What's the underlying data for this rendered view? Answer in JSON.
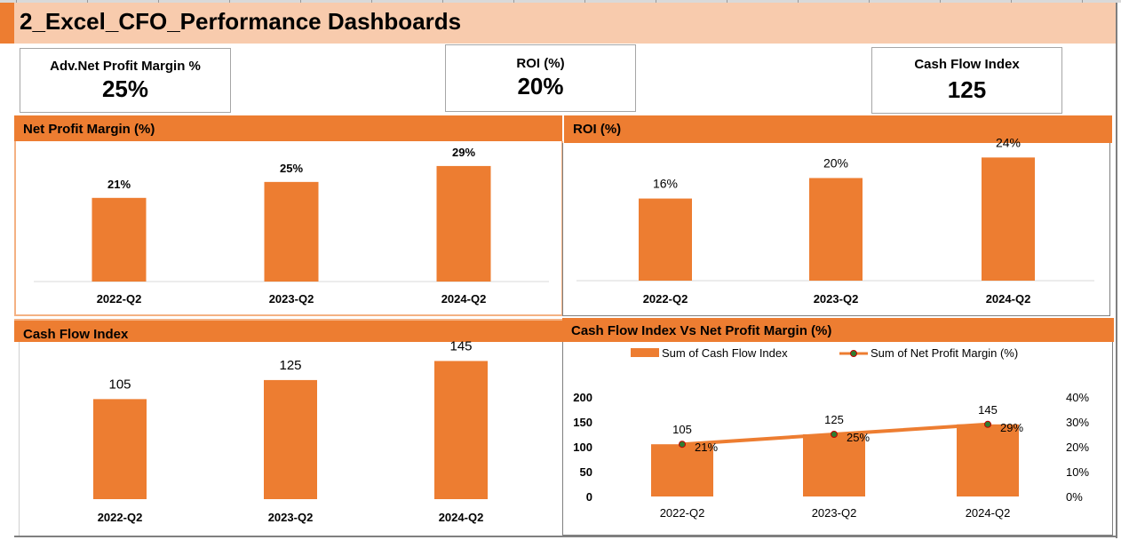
{
  "title": "2_Excel_CFO_Performance Dashboards",
  "colors": {
    "accent": "#ed7d31",
    "header_bg": "#f8cbad",
    "line_series": "#ed7d31",
    "marker": "#2e7d32"
  },
  "kpis": {
    "npm": {
      "label": "Adv.Net Profit Margin %",
      "value": "25%"
    },
    "roi": {
      "label": "ROI (%)",
      "value": "20%"
    },
    "cfi": {
      "label": "Cash Flow Index",
      "value": "125"
    }
  },
  "panels": {
    "npm_title": "Net Profit Margin (%)",
    "roi_title": "ROI (%)",
    "cfi_title": "Cash Flow Index",
    "combo_title": "Cash Flow Index Vs Net Profit Margin (%)"
  },
  "chart_data": [
    {
      "type": "bar",
      "title": "Net Profit Margin (%)",
      "categories": [
        "2022-Q2",
        "2023-Q2",
        "2024-Q2"
      ],
      "values": [
        21,
        25,
        29
      ],
      "data_labels": [
        "21%",
        "25%",
        "29%"
      ],
      "ylim": [
        0,
        35
      ]
    },
    {
      "type": "bar",
      "title": "ROI (%)",
      "categories": [
        "2022-Q2",
        "2023-Q2",
        "2024-Q2"
      ],
      "values": [
        16,
        20,
        24
      ],
      "data_labels": [
        "16%",
        "20%",
        "24%"
      ],
      "ylim": [
        0,
        27
      ]
    },
    {
      "type": "bar",
      "title": "Cash Flow Index",
      "categories": [
        "2022-Q2",
        "2023-Q2",
        "2024-Q2"
      ],
      "values": [
        105,
        125,
        145
      ],
      "data_labels": [
        "105",
        "125",
        "145"
      ],
      "ylim": [
        0,
        165
      ]
    },
    {
      "type": "bar+line",
      "title": "Cash Flow Index Vs Net Profit Margin (%)",
      "categories": [
        "2022-Q2",
        "2023-Q2",
        "2024-Q2"
      ],
      "series": [
        {
          "name": "Sum of Cash Flow Index",
          "type": "bar",
          "values": [
            105,
            125,
            145
          ],
          "data_labels": [
            "105",
            "125",
            "145"
          ]
        },
        {
          "name": "Sum of Net Profit Margin (%)",
          "type": "line",
          "values": [
            21,
            25,
            29
          ],
          "data_labels": [
            "21%",
            "25%",
            "29%"
          ]
        }
      ],
      "y_left": {
        "ticks": [
          "0",
          "50",
          "100",
          "150",
          "200"
        ],
        "ylim": [
          0,
          200
        ]
      },
      "y_right": {
        "ticks": [
          "0%",
          "10%",
          "20%",
          "30%",
          "40%"
        ],
        "ylim": [
          0,
          40
        ]
      },
      "legend": "top"
    }
  ]
}
